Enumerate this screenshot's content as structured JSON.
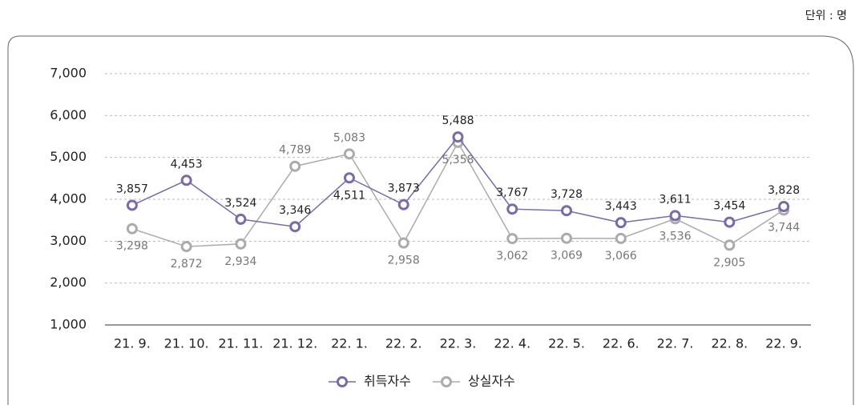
{
  "chart_data": {
    "type": "line",
    "unit": "단위 : 명",
    "categories": [
      "21. 9.",
      "21. 10.",
      "21. 11.",
      "21. 12.",
      "22. 1.",
      "22. 2.",
      "22. 3.",
      "22. 4.",
      "22. 5.",
      "22. 6.",
      "22. 7.",
      "22. 8.",
      "22. 9."
    ],
    "series": [
      {
        "name": "취득자수",
        "color": "#7b6aa8",
        "values": [
          3857,
          4453,
          3524,
          3346,
          4511,
          3873,
          5488,
          3767,
          3728,
          3443,
          3611,
          3454,
          3828
        ],
        "value_labels": [
          "3,857",
          "4,453",
          "3,524",
          "3,346",
          "4,511",
          "3,873",
          "5,488",
          "3,767",
          "3,728",
          "3,443",
          "3,611",
          "3,454",
          "3,828"
        ]
      },
      {
        "name": "상실자수",
        "color": "#ababab",
        "values": [
          3298,
          2872,
          2934,
          4789,
          5083,
          2958,
          5358,
          3062,
          3069,
          3066,
          3536,
          2905,
          3744
        ],
        "value_labels": [
          "3,298",
          "2,872",
          "2,934",
          "4,789",
          "5,083",
          "2,958",
          "5,358",
          "3,062",
          "3,069",
          "3,066",
          "3,536",
          "2,905",
          "3,744"
        ]
      }
    ],
    "ylim": [
      1000,
      7000
    ],
    "yticks": [
      {
        "value": 1000,
        "label": "1,000"
      },
      {
        "value": 2000,
        "label": "2,000"
      },
      {
        "value": 3000,
        "label": "3,000"
      },
      {
        "value": 4000,
        "label": "4,000"
      },
      {
        "value": 5000,
        "label": "5,000"
      },
      {
        "value": 6000,
        "label": "6,000"
      },
      {
        "value": 7000,
        "label": "7,000"
      }
    ],
    "grid": true
  }
}
